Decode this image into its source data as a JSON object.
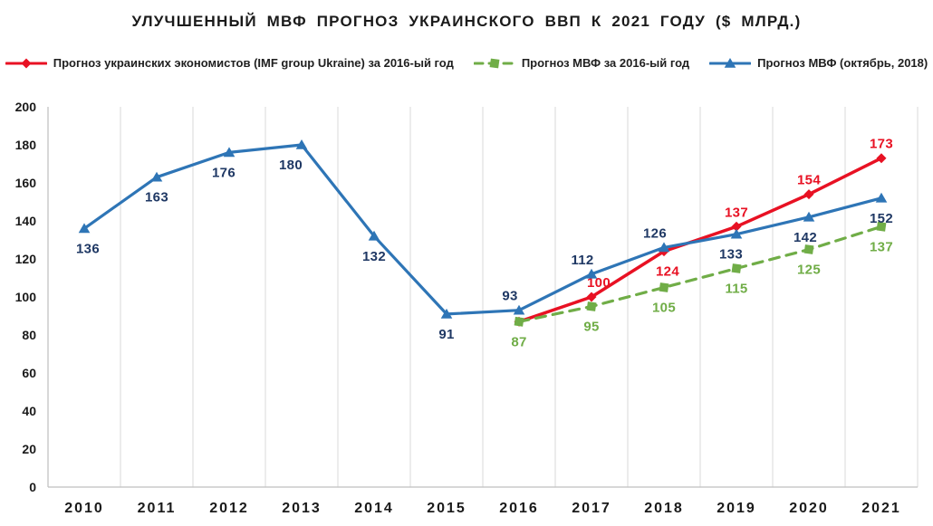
{
  "chart_data": {
    "type": "line",
    "title": "УЛУЧШЕННЫЙ МВФ ПРОГНОЗ УКРАИНСКОГО ВВП К 2021 ГОДУ ($ МЛРД.)",
    "xlabel": "",
    "ylabel": "",
    "ylim": [
      0,
      200
    ],
    "ytick_step": 20,
    "grid": "vertical-only",
    "legend_position": "top",
    "categories": [
      "2010",
      "2011",
      "2012",
      "2013",
      "2014",
      "2015",
      "2016",
      "2017",
      "2018",
      "2019",
      "2020",
      "2021"
    ],
    "series": [
      {
        "name": "Прогноз украинских экономистов (IMF group Ukraine) за 2016-ый год",
        "marker": "diamond",
        "line_style": "solid",
        "line_width": 3.5,
        "color": "#e81123",
        "label_color": "#e81123",
        "values": [
          null,
          null,
          null,
          null,
          null,
          null,
          87,
          100,
          124,
          137,
          154,
          173
        ],
        "labels": [
          "",
          "",
          "",
          "",
          "",
          "",
          "",
          "100",
          "124",
          "137",
          "154",
          "173"
        ],
        "label_pos": [
          "",
          "",
          "",
          "",
          "",
          "",
          "",
          "above",
          "below",
          "above",
          "above",
          "above"
        ],
        "label_dx": [
          0,
          0,
          0,
          0,
          0,
          0,
          0,
          8,
          4,
          0,
          0,
          0
        ]
      },
      {
        "name": "Прогноз МВФ за 2016-ый год",
        "marker": "square",
        "line_style": "dashed",
        "line_width": 3.2,
        "color": "#70ad47",
        "label_color": "#70ad47",
        "values": [
          null,
          null,
          null,
          null,
          null,
          null,
          87,
          95,
          105,
          115,
          125,
          137
        ],
        "labels": [
          "",
          "",
          "",
          "",
          "",
          "",
          "87",
          "95",
          "105",
          "115",
          "125",
          "137"
        ],
        "label_pos": [
          "",
          "",
          "",
          "",
          "",
          "",
          "below",
          "below",
          "below",
          "below",
          "below",
          "below"
        ],
        "label_dx": [
          0,
          0,
          0,
          0,
          0,
          0,
          0,
          0,
          0,
          0,
          0,
          0
        ]
      },
      {
        "name": "Прогноз МВФ (октябрь, 2018)",
        "marker": "triangle",
        "line_style": "solid",
        "line_width": 3.2,
        "color": "#2e75b6",
        "label_color": "#1f3864",
        "values": [
          136,
          163,
          176,
          180,
          132,
          91,
          93,
          112,
          126,
          133,
          142,
          152
        ],
        "labels": [
          "136",
          "163",
          "176",
          "180",
          "132",
          "91",
          "93",
          "112",
          "126",
          "133",
          "142",
          "152"
        ],
        "label_pos": [
          "below",
          "below",
          "below",
          "below",
          "below",
          "below",
          "above",
          "above",
          "above",
          "below",
          "below",
          "below"
        ],
        "label_dx": [
          4,
          0,
          -6,
          -12,
          0,
          0,
          -10,
          -10,
          -10,
          -6,
          -4,
          0
        ]
      }
    ],
    "style": {
      "gridline_color": "#d9d9d9",
      "axis_color": "#bfbfbf",
      "tick_label_color": "#1a1a1a",
      "title_color": "#1a1a1a",
      "legend_text_color": "#1f1f1f",
      "background": "#ffffff"
    }
  }
}
